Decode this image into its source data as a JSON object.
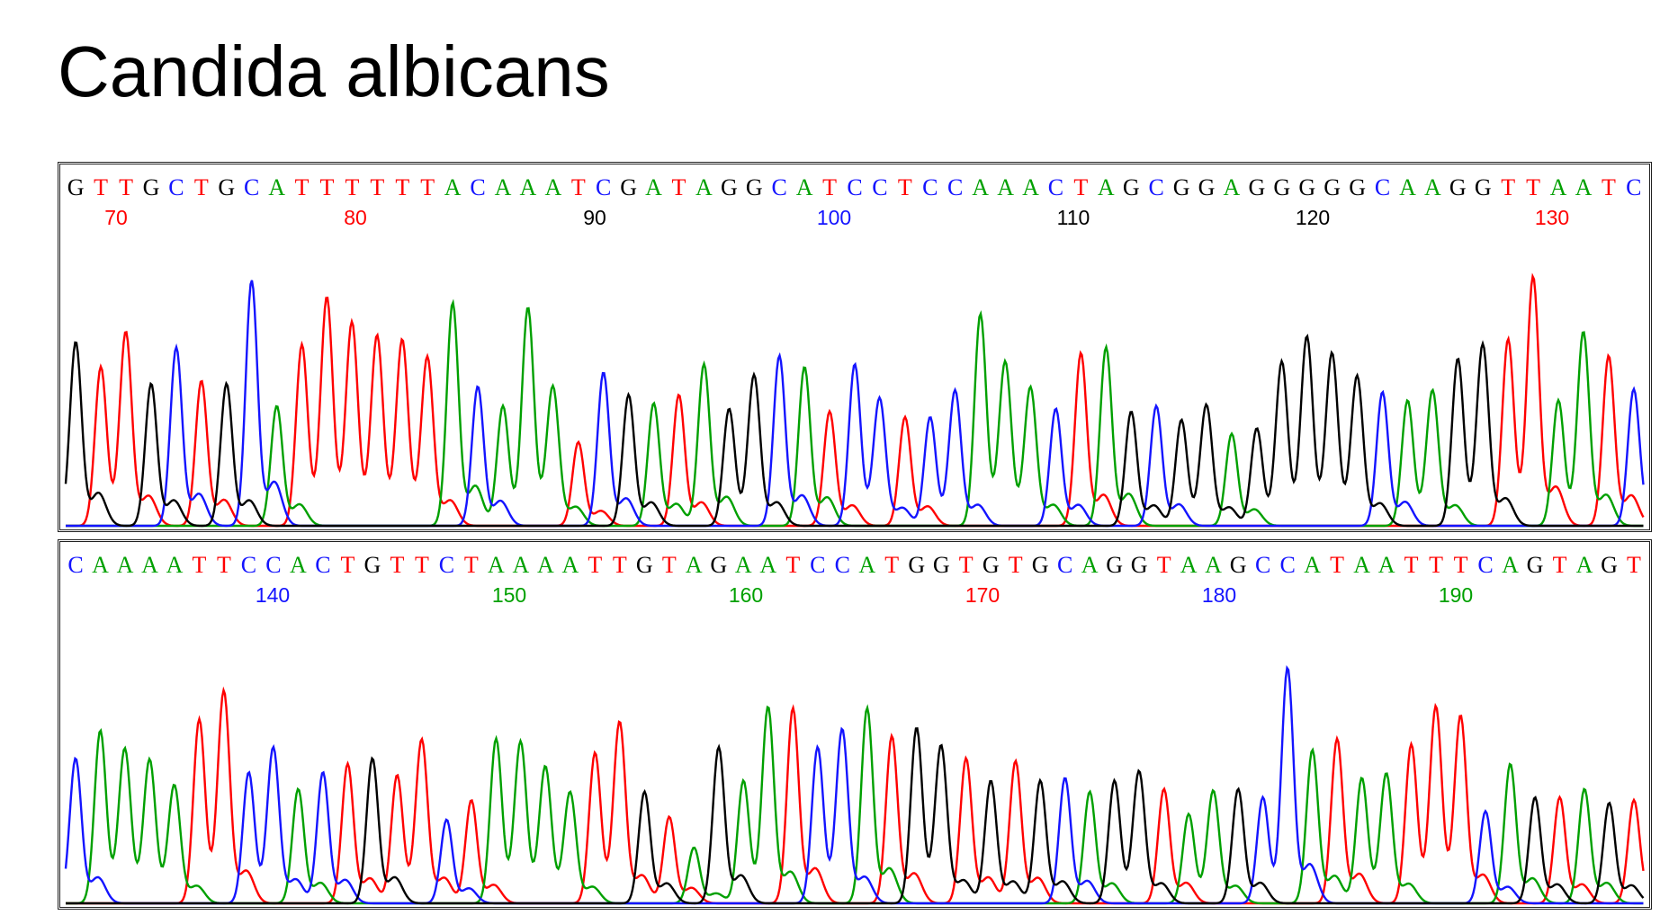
{
  "title": "Candida albicans",
  "colors": {
    "A": "#00a000",
    "C": "#1414ff",
    "G": "#000000",
    "T": "#ff0000"
  },
  "chart_data": [
    {
      "type": "line",
      "sequence": "GTTGCTGCATTTTTTACAAATCGATAGGCATCCTCCAAACTAGCGGAGGGGGCAAGGTTAATC",
      "position_labels": [
        {
          "label": "70",
          "color": "#ff0000"
        },
        {
          "label": "80",
          "color": "#ff0000"
        },
        {
          "label": "90",
          "color": "#000000"
        },
        {
          "label": "100",
          "color": "#1414ff"
        },
        {
          "label": "110",
          "color": "#000000"
        },
        {
          "label": "120",
          "color": "#000000"
        },
        {
          "label": "130",
          "color": "#ff0000"
        }
      ],
      "peak_heights": [
        0.66,
        0.57,
        0.6,
        0.51,
        0.64,
        0.52,
        0.51,
        0.88,
        0.43,
        0.65,
        0.71,
        0.61,
        0.58,
        0.57,
        0.51,
        0.8,
        0.5,
        0.43,
        0.71,
        0.38,
        0.3,
        0.55,
        0.47,
        0.44,
        0.47,
        0.58,
        0.42,
        0.47,
        0.61,
        0.57,
        0.41,
        0.58,
        0.36,
        0.39,
        0.39,
        0.42,
        0.76,
        0.46,
        0.42,
        0.42,
        0.62,
        0.64,
        0.41,
        0.43,
        0.38,
        0.37,
        0.33,
        0.35,
        0.53,
        0.59,
        0.52,
        0.45,
        0.48,
        0.45,
        0.41,
        0.6,
        0.55,
        0.67,
        0.78,
        0.45,
        0.62,
        0.61,
        0.49
      ]
    },
    {
      "type": "line",
      "sequence": "CAAAATTCCACTGTTCTAAAATTGTAGAATCCATGGTGTGCAGGTAAGCCATAATTTCAGTAGT",
      "position_labels": [
        {
          "label": "140",
          "color": "#1414ff"
        },
        {
          "label": "150",
          "color": "#00a000"
        },
        {
          "label": "160",
          "color": "#00a000"
        },
        {
          "label": "170",
          "color": "#ff0000"
        },
        {
          "label": "180",
          "color": "#1414ff"
        },
        {
          "label": "190",
          "color": "#00a000"
        }
      ],
      "peak_heights": [
        0.52,
        0.62,
        0.45,
        0.44,
        0.35,
        0.66,
        0.65,
        0.47,
        0.48,
        0.41,
        0.47,
        0.5,
        0.52,
        0.46,
        0.51,
        0.3,
        0.37,
        0.59,
        0.48,
        0.41,
        0.33,
        0.54,
        0.56,
        0.4,
        0.31,
        0.2,
        0.56,
        0.44,
        0.63,
        0.7,
        0.56,
        0.53,
        0.7,
        0.6,
        0.63,
        0.46,
        0.52,
        0.44,
        0.51,
        0.44,
        0.45,
        0.4,
        0.44,
        0.4,
        0.41,
        0.32,
        0.35,
        0.41,
        0.38,
        0.78,
        0.55,
        0.59,
        0.45,
        0.39,
        0.57,
        0.61,
        0.57,
        0.33,
        0.5,
        0.38,
        0.38,
        0.41,
        0.36,
        0.37
      ]
    }
  ]
}
